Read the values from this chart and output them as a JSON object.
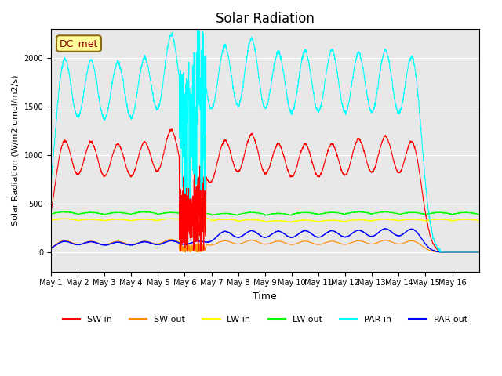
{
  "title": "Solar Radiation",
  "ylabel": "Solar Radiation (W/m2 umol/m2/s)",
  "xlabel": "Time",
  "ylim": [
    -200,
    2300
  ],
  "annotation_text": "DC_met",
  "annotation_color": "#8B0000",
  "annotation_bg": "#FFFF99",
  "bg_color": "#E8E8E8",
  "legend_entries": [
    "SW in",
    "SW out",
    "LW in",
    "LW out",
    "PAR in",
    "PAR out"
  ],
  "legend_colors": [
    "#FF0000",
    "#FF8C00",
    "#FFFF00",
    "#00FF00",
    "#00FFFF",
    "#0000FF"
  ],
  "x_tick_labels": [
    "May 1",
    "May 2",
    "May 3",
    "May 4",
    "May 5",
    "May 6",
    "May 7",
    "May 8",
    "May 9",
    "May 10",
    "May 11",
    "May 12",
    "May 13",
    "May 14",
    "May 15",
    "May 16"
  ],
  "n_days": 16,
  "sw_in_peaks": [
    1130,
    1100,
    1080,
    1100,
    1230,
    900,
    1120,
    1180,
    1080,
    1080,
    1080,
    1130,
    1160,
    1120,
    0,
    0
  ],
  "sw_out_peaks": [
    120,
    110,
    110,
    110,
    130,
    90,
    115,
    120,
    110,
    110,
    110,
    115,
    120,
    115,
    0,
    0
  ],
  "lw_in_values": [
    330,
    325,
    325,
    325,
    330,
    340,
    325,
    320,
    310,
    315,
    315,
    320,
    325,
    325,
    325,
    325
  ],
  "lw_out_values": [
    395,
    390,
    390,
    395,
    390,
    390,
    380,
    390,
    380,
    390,
    390,
    395,
    395,
    390,
    390,
    390
  ],
  "par_in_peaks": [
    1960,
    1920,
    1900,
    1940,
    2180,
    2050,
    2060,
    2140,
    2000,
    2010,
    2020,
    1990,
    2020,
    1980,
    0,
    0
  ],
  "par_out_peaks": [
    110,
    105,
    100,
    105,
    115,
    110,
    210,
    215,
    210,
    215,
    215,
    220,
    235,
    235,
    0,
    0
  ]
}
